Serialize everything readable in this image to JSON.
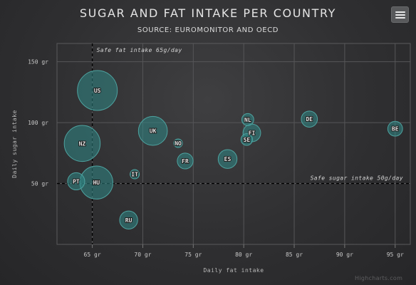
{
  "chart_data": {
    "type": "bubble",
    "title": "SUGAR AND FAT INTAKE PER COUNTRY",
    "subtitle": "SOURCE: EUROMONITOR AND OECD",
    "xlabel": "Daily fat intake",
    "ylabel": "Daily sugar intake",
    "xlim": [
      61.5,
      96.5
    ],
    "ylim": [
      0,
      165
    ],
    "x_ticks": [
      65,
      70,
      75,
      80,
      85,
      90,
      95
    ],
    "x_tick_labels": [
      "65 gr",
      "70 gr",
      "75 gr",
      "80 gr",
      "85 gr",
      "90 gr",
      "95 gr"
    ],
    "y_ticks": [
      50,
      100,
      150
    ],
    "y_tick_labels": [
      "50 gr",
      "100 gr",
      "150 gr"
    ],
    "grid": true,
    "plot_lines": [
      {
        "axis": "x",
        "value": 65,
        "label": "Safe fat intake 65g/day",
        "style": "dashed"
      },
      {
        "axis": "y",
        "value": 50,
        "label": "Safe sugar intake 50g/day",
        "style": "dashed"
      }
    ],
    "points": [
      {
        "code": "BE",
        "x": 95.0,
        "y": 95.0,
        "z": 13.8
      },
      {
        "code": "DE",
        "x": 86.5,
        "y": 102.9,
        "z": 14.7
      },
      {
        "code": "FI",
        "x": 80.8,
        "y": 91.5,
        "z": 15.8
      },
      {
        "code": "NL",
        "x": 80.4,
        "y": 102.5,
        "z": 12.0
      },
      {
        "code": "SE",
        "x": 80.3,
        "y": 86.1,
        "z": 11.8
      },
      {
        "code": "ES",
        "x": 78.4,
        "y": 70.1,
        "z": 16.6
      },
      {
        "code": "FR",
        "x": 74.2,
        "y": 68.5,
        "z": 14.5
      },
      {
        "code": "NO",
        "x": 73.5,
        "y": 83.1,
        "z": 10.0
      },
      {
        "code": "UK",
        "x": 71.0,
        "y": 93.2,
        "z": 24.7
      },
      {
        "code": "IT",
        "x": 69.2,
        "y": 57.6,
        "z": 10.4
      },
      {
        "code": "RU",
        "x": 68.6,
        "y": 20.0,
        "z": 16.0
      },
      {
        "code": "US",
        "x": 65.5,
        "y": 126.4,
        "z": 35.3
      },
      {
        "code": "HU",
        "x": 65.4,
        "y": 50.8,
        "z": 28.5
      },
      {
        "code": "PT",
        "x": 63.4,
        "y": 51.8,
        "z": 15.4
      },
      {
        "code": "NZ",
        "x": 64.0,
        "y": 82.9,
        "z": 31.3
      }
    ],
    "colors": {
      "bubble_fill": "#2f8886",
      "bubble_stroke": "#4ea3a0",
      "grid": "#565658",
      "plot_line": "#000000"
    }
  },
  "ui": {
    "menu_icon": "hamburger-menu-icon",
    "credits": "Highcharts.com"
  }
}
